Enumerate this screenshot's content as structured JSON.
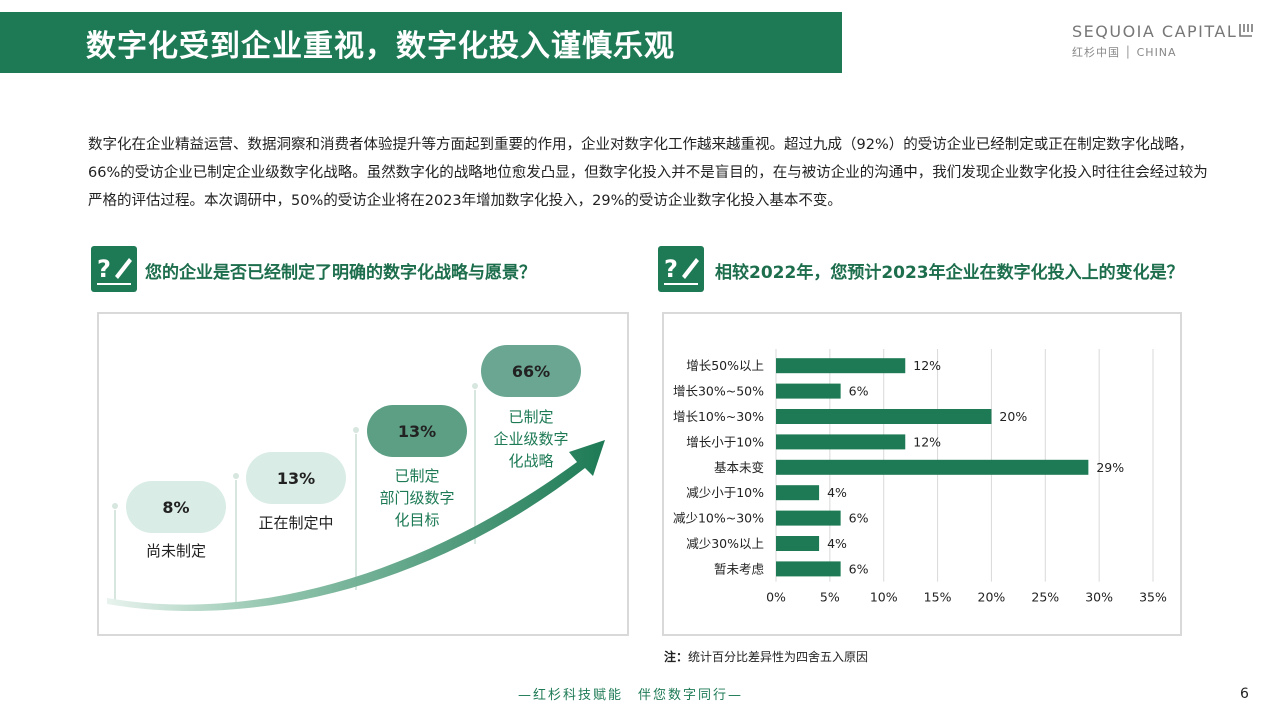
{
  "header": {
    "title": "数字化受到企业重视，数字化投入谨慎乐观",
    "logo_en": "SEQUOIA CAPITAL",
    "logo_cn": "红杉中国 │ CHINA"
  },
  "intro": {
    "text": "数字化在企业精益运营、数据洞察和消费者体验提升等方面起到重要的作用，企业对数字化工作越来越重视。超过九成（92%）的受访企业已经制定或正在制定数字化战略，66%的受访企业已制定企业级数字化战略。虽然数字化的战略地位愈发凸显，但数字化投入并不是盲目的，在与被访企业的沟通中，我们发现企业数字化投入时往往会经过较为严格的评估过程。本次调研中，50%的受访企业将在2023年增加数字化投入，29%的受访企业数字化投入基本不变。"
  },
  "left_section": {
    "question": "您的企业是否已经制定了明确的数字化战略与愿景？",
    "stages": [
      {
        "value": "8%",
        "label": "尚未制定"
      },
      {
        "value": "13%",
        "label": "正在制定中"
      },
      {
        "value": "13%",
        "label": "已制定\n部门级数字\n化目标"
      },
      {
        "value": "66%",
        "label": "已制定\n企业级数字\n化战略"
      }
    ]
  },
  "right_section": {
    "question": "相较2022年，您预计2023年企业在数字化投入上的变化是？",
    "note_prefix": "注：",
    "note_text": "统计百分比差异性为四舍五入原因"
  },
  "chart_data": {
    "type": "bar",
    "orientation": "horizontal",
    "categories": [
      "增长50%以上",
      "增长30%~50%",
      "增长10%~30%",
      "增长小于10%",
      "基本未变",
      "减少小于10%",
      "减少10%~30%",
      "减少30%以上",
      "暂未考虑"
    ],
    "values": [
      12,
      6,
      20,
      12,
      29,
      4,
      6,
      4,
      6
    ],
    "value_labels": [
      "12%",
      "6%",
      "20%",
      "12%",
      "29%",
      "4%",
      "6%",
      "4%",
      "6%"
    ],
    "xlim": [
      0,
      35
    ],
    "xticks": [
      "0%",
      "5%",
      "10%",
      "15%",
      "20%",
      "25%",
      "30%",
      "35%"
    ],
    "grid": true,
    "bar_color": "#1d7a55"
  },
  "footer": {
    "slogan": "—红杉科技赋能　伴您数字同行—",
    "page": "6"
  },
  "colors": {
    "brand": "#1d7a55",
    "bubble_light": "#d9ece5",
    "bubble_dark": "#5d9f85"
  }
}
